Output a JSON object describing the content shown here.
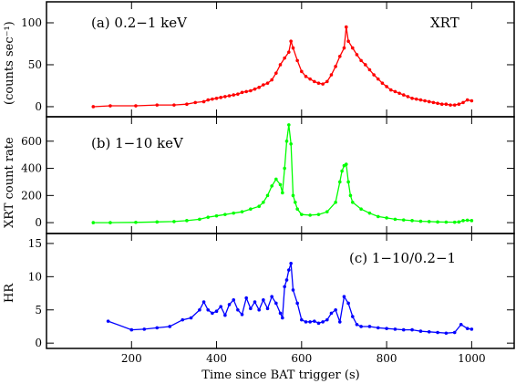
{
  "chart_data": {
    "type": "line",
    "xlabel": "Time since BAT trigger (s)",
    "xlim": [
      0,
      1100
    ],
    "xticks": [
      200,
      400,
      600,
      800,
      1000
    ],
    "shared_ylabel": "XRT count rate",
    "panels": [
      {
        "id": "a",
        "label": "(a) 0.2−1 keV",
        "instrument": "XRT",
        "ylabel": "(counts sec⁻¹)",
        "ylim": [
          -12,
          125
        ],
        "yticks": [
          0,
          50,
          100
        ],
        "color": "#ff0000",
        "series": [
          {
            "x": [
              110,
              150,
              210,
              260,
              300,
              330,
              350,
              370,
              380,
              390,
              400,
              410,
              420,
              430,
              440,
              450,
              460,
              470,
              480,
              490,
              500,
              510,
              520,
              530,
              540,
              550,
              560,
              570,
              575,
              580,
              590,
              600,
              610,
              620,
              630,
              640,
              650,
              660,
              670,
              680,
              690,
              700,
              705,
              710,
              720,
              730,
              740,
              750,
              760,
              770,
              780,
              790,
              800,
              810,
              820,
              830,
              840,
              850,
              860,
              870,
              880,
              890,
              900,
              910,
              920,
              930,
              940,
              950,
              960,
              970,
              980,
              990,
              1000
            ],
            "y": [
              0,
              1,
              1,
              2,
              2,
              3,
              5,
              6,
              8,
              9,
              10,
              11,
              12,
              13,
              14,
              15,
              17,
              18,
              19,
              21,
              23,
              26,
              28,
              32,
              40,
              50,
              58,
              65,
              78,
              70,
              55,
              42,
              36,
              33,
              30,
              28,
              27,
              30,
              38,
              48,
              60,
              70,
              95,
              78,
              70,
              62,
              55,
              50,
              44,
              38,
              33,
              28,
              24,
              20,
              18,
              16,
              14,
              12,
              10,
              9,
              8,
              7,
              6,
              5,
              4,
              3,
              3,
              2,
              2,
              3,
              5,
              8,
              7
            ]
          }
        ]
      },
      {
        "id": "b",
        "label": "(b) 1−10 keV",
        "ylabel": "",
        "ylim": [
          -80,
          780
        ],
        "yticks": [
          0,
          200,
          400,
          600
        ],
        "color": "#00ff00",
        "series": [
          {
            "x": [
              110,
              150,
              210,
              260,
              300,
              330,
              360,
              380,
              400,
              420,
              440,
              460,
              480,
              500,
              510,
              520,
              530,
              540,
              550,
              555,
              560,
              565,
              570,
              575,
              580,
              585,
              590,
              600,
              620,
              640,
              660,
              680,
              690,
              695,
              700,
              705,
              710,
              715,
              720,
              740,
              760,
              780,
              800,
              820,
              840,
              860,
              880,
              900,
              920,
              940,
              960,
              970,
              980,
              990,
              1000
            ],
            "y": [
              0,
              0,
              2,
              5,
              8,
              15,
              25,
              40,
              50,
              60,
              70,
              80,
              100,
              120,
              150,
              200,
              270,
              320,
              280,
              220,
              400,
              600,
              720,
              580,
              200,
              150,
              100,
              60,
              55,
              60,
              80,
              150,
              300,
              380,
              420,
              430,
              300,
              200,
              150,
              100,
              70,
              45,
              35,
              25,
              20,
              15,
              10,
              8,
              5,
              4,
              3,
              5,
              15,
              18,
              15
            ]
          }
        ]
      },
      {
        "id": "c",
        "label": "(c) 1−10/0.2−1",
        "ylabel": "HR",
        "ylim": [
          -0.8,
          16.5
        ],
        "yticks": [
          0,
          5,
          10,
          15
        ],
        "color": "#0000ff",
        "series": [
          {
            "x": [
              145,
              200,
              230,
              260,
              290,
              320,
              340,
              360,
              370,
              380,
              390,
              400,
              410,
              420,
              430,
              440,
              450,
              460,
              470,
              480,
              490,
              500,
              510,
              520,
              530,
              540,
              550,
              555,
              560,
              565,
              570,
              575,
              580,
              590,
              600,
              610,
              620,
              630,
              640,
              650,
              660,
              670,
              680,
              690,
              700,
              710,
              720,
              730,
              740,
              760,
              780,
              800,
              820,
              840,
              860,
              880,
              900,
              920,
              940,
              960,
              975,
              990,
              1000
            ],
            "y": [
              3.3,
              2,
              2.1,
              2.3,
              2.5,
              3.5,
              3.8,
              5,
              6.2,
              5,
              4.5,
              4.8,
              5.5,
              4.2,
              5.8,
              6.5,
              5,
              4.3,
              6.8,
              5.2,
              6.2,
              5,
              6.5,
              5.2,
              7,
              6,
              4.5,
              3.8,
              8.5,
              9.5,
              11,
              12,
              8,
              6,
              3.5,
              3.2,
              3.2,
              3.3,
              3,
              3.2,
              3.5,
              4.5,
              5,
              3.2,
              7,
              6,
              4,
              2.8,
              2.5,
              2.5,
              2.3,
              2.2,
              2.1,
              2,
              2,
              1.8,
              1.7,
              1.6,
              1.5,
              1.6,
              2.8,
              2.2,
              2.1
            ]
          }
        ]
      }
    ]
  }
}
